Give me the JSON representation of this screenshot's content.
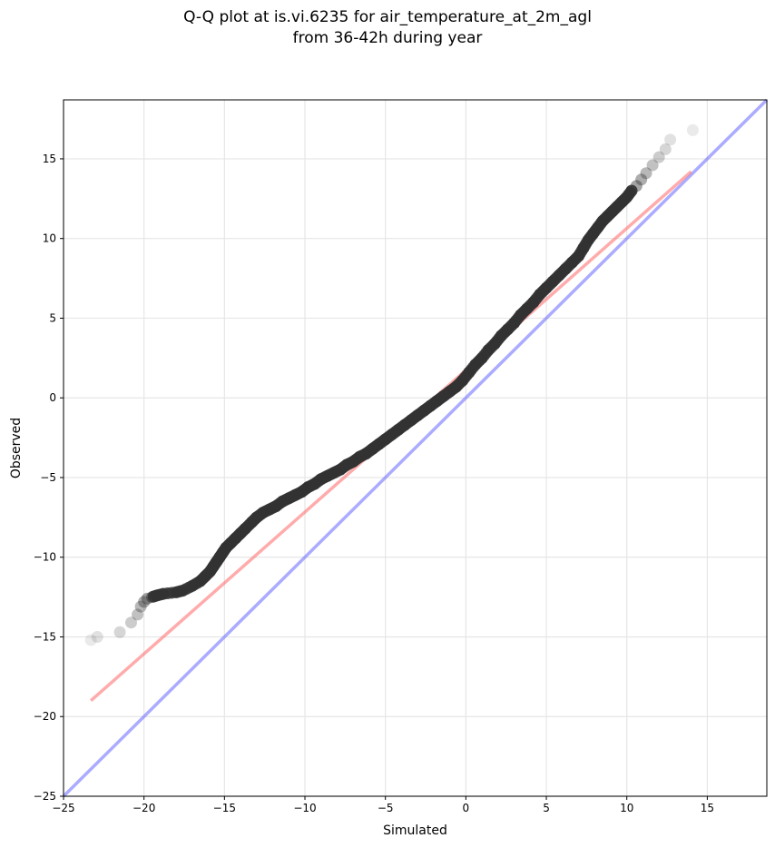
{
  "chart_data": {
    "type": "scatter",
    "title_lines": [
      "Q-Q plot at is.vi.6235 for air_temperature_at_2m_agl",
      "from 36-42h during year"
    ],
    "xlabel": "Simulated",
    "ylabel": "Observed",
    "xlim": [
      -25,
      18.7
    ],
    "ylim": [
      -25,
      18.7
    ],
    "xticks": [
      -25,
      -20,
      -15,
      -10,
      -5,
      0,
      5,
      10,
      15
    ],
    "yticks": [
      -25,
      -20,
      -15,
      -10,
      -5,
      0,
      5,
      10,
      15
    ],
    "xtick_labels": [
      "−25",
      "−20",
      "−15",
      "−10",
      "−5",
      "0",
      "5",
      "10",
      "15"
    ],
    "ytick_labels": [
      "−25",
      "−20",
      "−15",
      "−10",
      "−5",
      "0",
      "5",
      "10",
      "15"
    ],
    "grid": true,
    "colors": {
      "points": "#333333",
      "fit_line": "#ff6666",
      "identity_line": "#6666ff"
    },
    "identity_line": {
      "x": [
        -25,
        18.7
      ],
      "y": [
        -25,
        18.7
      ]
    },
    "fit_line": {
      "x": [
        -23.3,
        14.0
      ],
      "y": [
        -19.0,
        14.2
      ]
    },
    "points": {
      "x": [
        -23.3,
        -22.9,
        -21.5,
        -20.8,
        -20.4,
        -20.2,
        -20.0,
        -19.8,
        -19.5,
        -19.2,
        -18.8,
        -18.0,
        -17.6,
        -17.0,
        -16.5,
        -16.2,
        -15.9,
        -15.7,
        -15.5,
        -15.3,
        -15.1,
        -14.9,
        -14.6,
        -14.3,
        -14.0,
        -13.7,
        -13.3,
        -13.0,
        -12.6,
        -12.2,
        -11.8,
        -11.4,
        -11.0,
        -10.6,
        -10.2,
        -9.8,
        -9.4,
        -9.0,
        -8.6,
        -8.2,
        -7.8,
        -7.4,
        -7.0,
        -6.6,
        -6.2,
        -5.8,
        -5.4,
        -5.0,
        -4.6,
        -4.2,
        -3.8,
        -3.4,
        -3.0,
        -2.6,
        -2.2,
        -1.8,
        -1.4,
        -1.0,
        -0.6,
        -0.2,
        0.2,
        0.6,
        1.0,
        1.4,
        1.8,
        2.2,
        2.6,
        3.0,
        3.4,
        3.8,
        4.2,
        4.6,
        5.0,
        5.4,
        5.8,
        6.2,
        6.6,
        7.0,
        7.3,
        7.6,
        7.9,
        8.2,
        8.5,
        8.8,
        9.1,
        9.4,
        9.7,
        10.0,
        10.3,
        10.6,
        10.9,
        11.2,
        11.6,
        12.0,
        12.4,
        12.7,
        14.1
      ],
      "y": [
        -15.2,
        -15.0,
        -14.7,
        -14.1,
        -13.6,
        -13.1,
        -12.8,
        -12.6,
        -12.5,
        -12.4,
        -12.3,
        -12.2,
        -12.1,
        -11.8,
        -11.5,
        -11.2,
        -10.9,
        -10.6,
        -10.3,
        -10.0,
        -9.7,
        -9.4,
        -9.1,
        -8.8,
        -8.5,
        -8.2,
        -7.8,
        -7.5,
        -7.2,
        -7.0,
        -6.8,
        -6.5,
        -6.3,
        -6.1,
        -5.9,
        -5.6,
        -5.4,
        -5.1,
        -4.9,
        -4.7,
        -4.5,
        -4.2,
        -4.0,
        -3.7,
        -3.5,
        -3.2,
        -2.9,
        -2.6,
        -2.3,
        -2.0,
        -1.7,
        -1.4,
        -1.1,
        -0.8,
        -0.5,
        -0.2,
        0.1,
        0.4,
        0.7,
        1.1,
        1.6,
        2.1,
        2.5,
        3.0,
        3.4,
        3.9,
        4.3,
        4.7,
        5.2,
        5.6,
        6.0,
        6.5,
        6.9,
        7.3,
        7.7,
        8.1,
        8.5,
        8.9,
        9.4,
        9.9,
        10.3,
        10.7,
        11.1,
        11.4,
        11.7,
        12.0,
        12.3,
        12.6,
        13.0,
        13.3,
        13.7,
        14.1,
        14.6,
        15.1,
        15.6,
        16.2,
        16.8
      ]
    }
  }
}
